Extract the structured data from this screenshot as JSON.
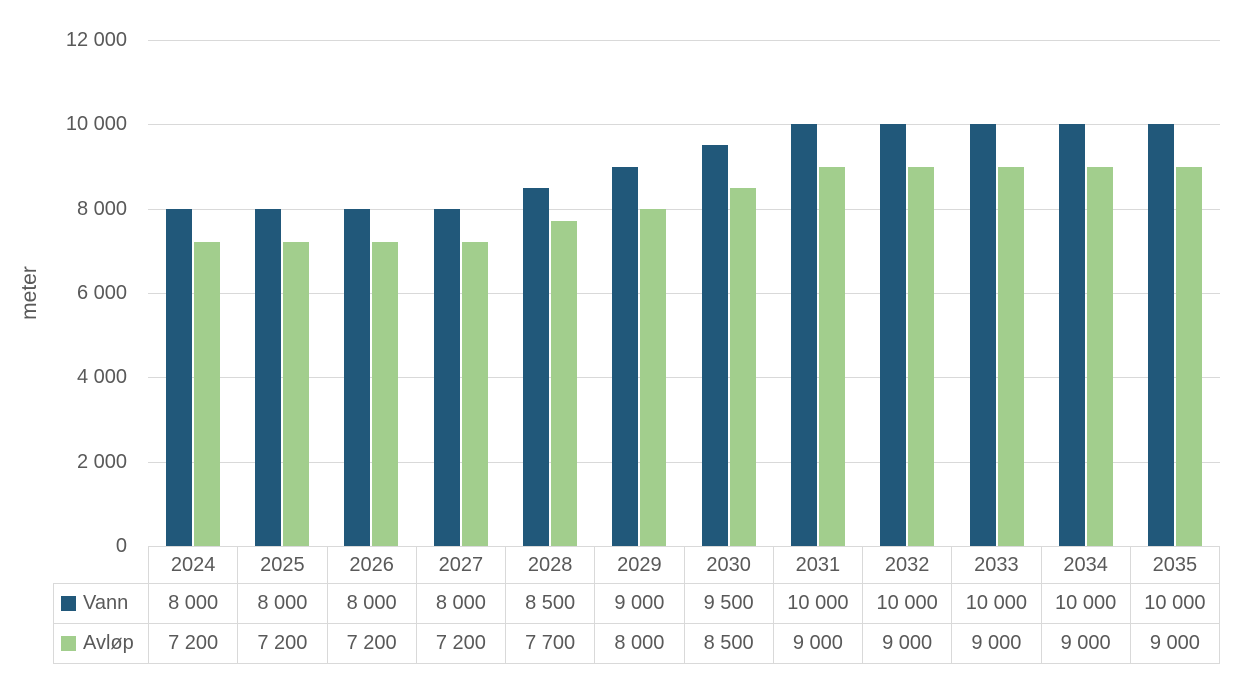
{
  "chart_data": {
    "type": "bar",
    "title": "",
    "xlabel": "",
    "ylabel": "meter",
    "categories": [
      "2024",
      "2025",
      "2026",
      "2027",
      "2028",
      "2029",
      "2030",
      "2031",
      "2032",
      "2033",
      "2034",
      "2035"
    ],
    "series": [
      {
        "name": "Vann",
        "color": "#21587A",
        "values": [
          8000,
          8000,
          8000,
          8000,
          8500,
          9000,
          9500,
          10000,
          10000,
          10000,
          10000,
          10000
        ],
        "values_display": [
          "8 000",
          "8 000",
          "8 000",
          "8 000",
          "8 500",
          "9 000",
          "9 500",
          "10 000",
          "10 000",
          "10 000",
          "10 000",
          "10 000"
        ]
      },
      {
        "name": "Avløp",
        "color": "#A2CE8D",
        "values": [
          7200,
          7200,
          7200,
          7200,
          7700,
          8000,
          8500,
          9000,
          9000,
          9000,
          9000,
          9000
        ],
        "values_display": [
          "7 200",
          "7 200",
          "7 200",
          "7 200",
          "7 700",
          "8 000",
          "8 500",
          "9 000",
          "9 000",
          "9 000",
          "9 000",
          "9 000"
        ]
      }
    ],
    "ylim": [
      0,
      12000
    ],
    "ytick_step": 2000,
    "ytick_labels": [
      "0",
      "2 000",
      "4 000",
      "6 000",
      "8 000",
      "10 000",
      "12 000"
    ],
    "grid": true,
    "legend_position": "data-table-left",
    "number_format": "space-thousands",
    "gridline_color": "#D9D9D9",
    "axis_text_color": "#595959",
    "table_border_color": "#D9D9D9",
    "background_color": "#FFFFFF"
  }
}
